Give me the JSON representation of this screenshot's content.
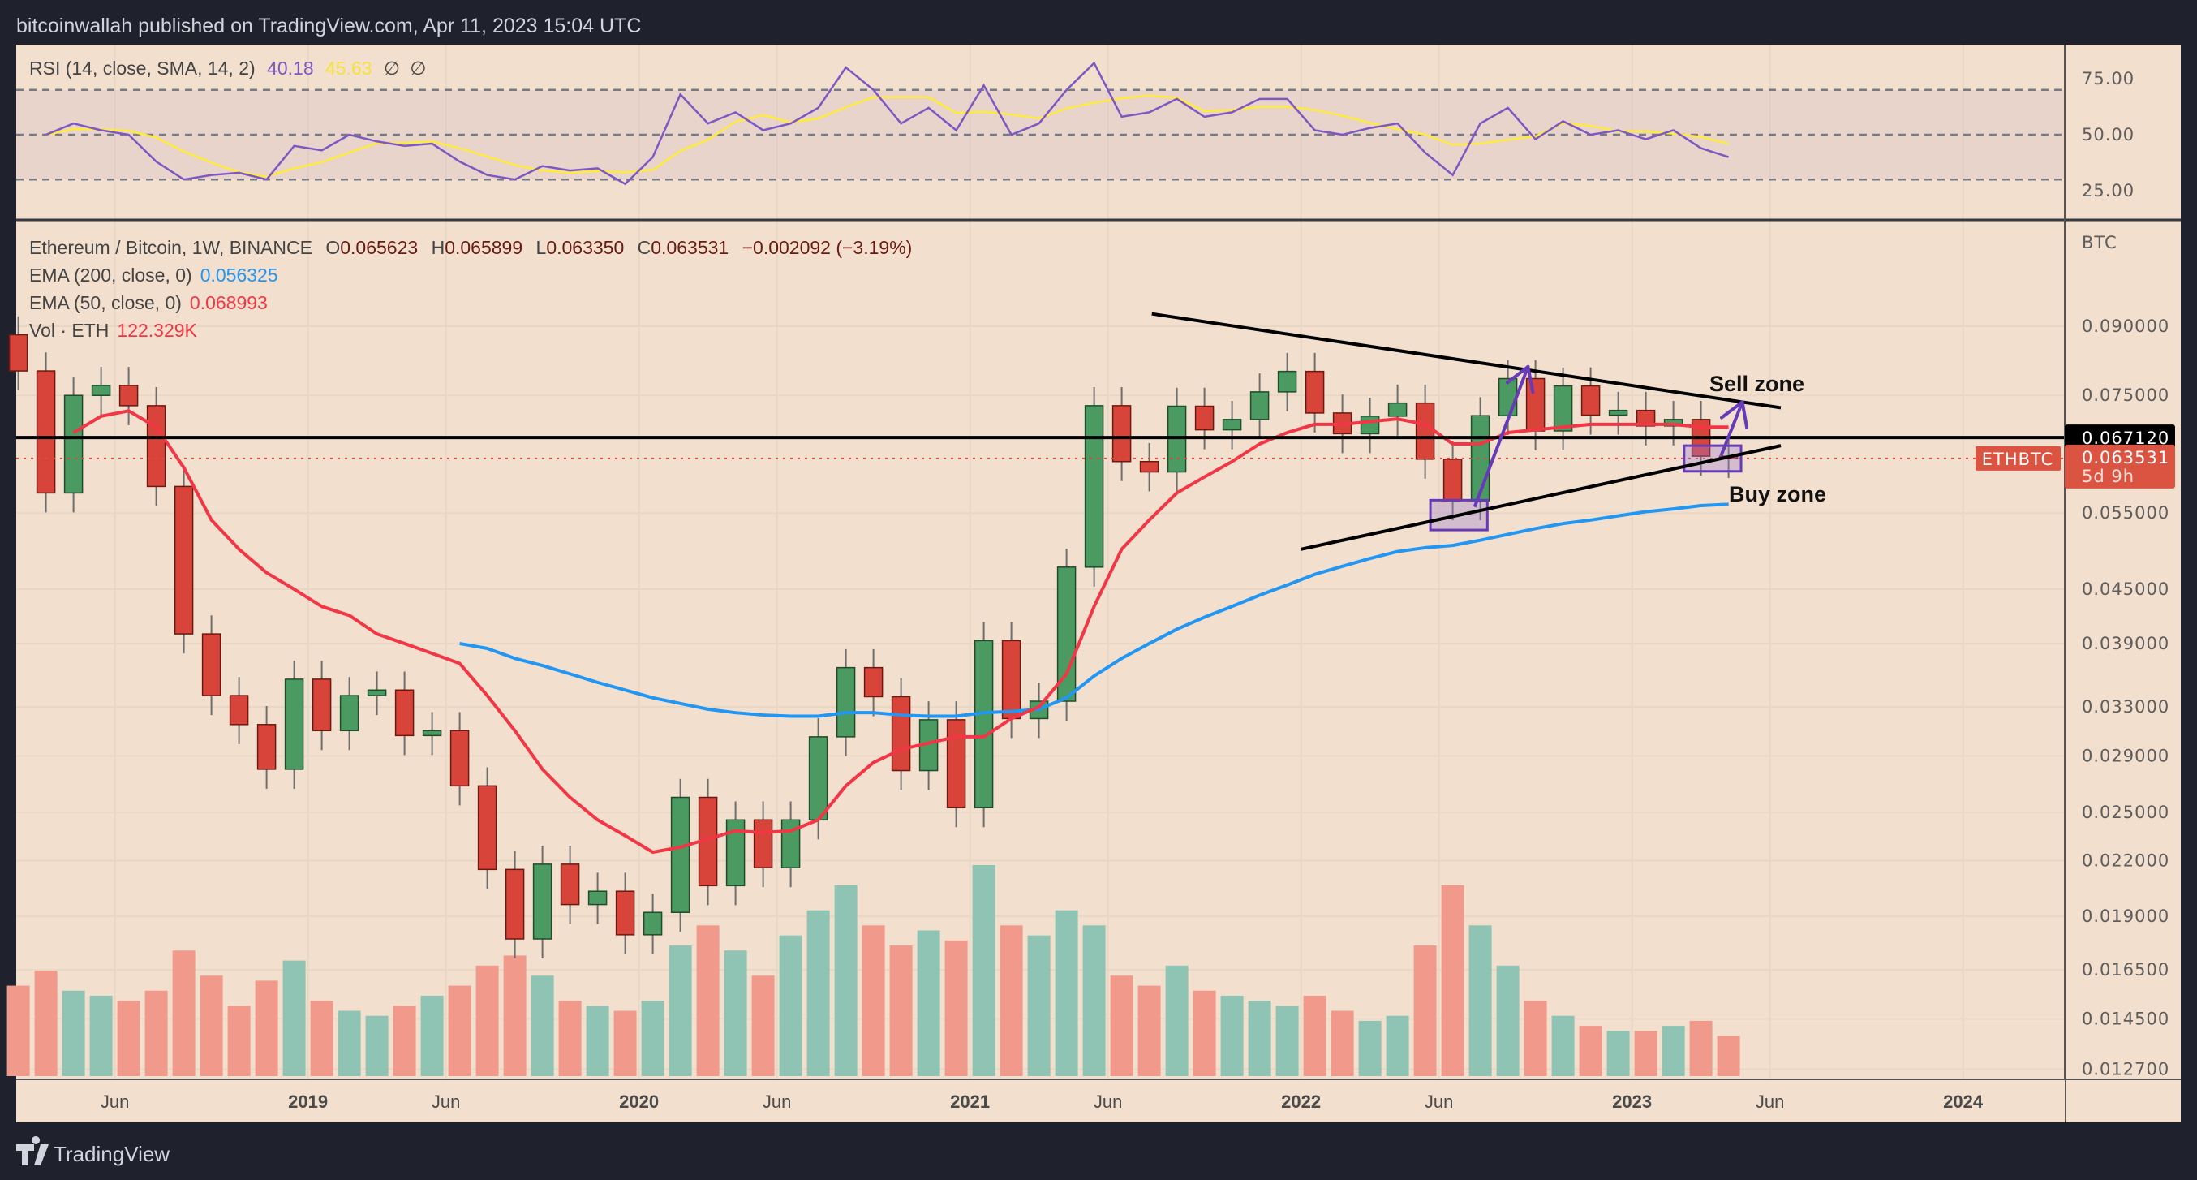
{
  "header": {
    "published": "bitcoinwallah published on TradingView.com, Apr 11, 2023 15:04 UTC"
  },
  "footer": {
    "brand": "TradingView"
  },
  "colors": {
    "background": "#f2dfcd",
    "up": "#4a9a62",
    "down": "#d9443a",
    "ema200": "#2196f3",
    "ema50": "#f23645",
    "rsi": "#7e57c2",
    "rsi_sma": "#ffeb3b",
    "annotation": "#673ab7",
    "volume_up": "#8fc4b4",
    "volume_down": "#f19a8c"
  },
  "rsi_legend": {
    "label": "RSI (14, close, SMA, 14, 2)",
    "rsi_value": "40.18",
    "sma_value": "45.63",
    "extra1": "∅",
    "extra2": "∅"
  },
  "legend": {
    "symbol": "Ethereum / Bitcoin, 1W, BINANCE",
    "o_label": "O",
    "o": "0.065623",
    "h_label": "H",
    "h": "0.065899",
    "l_label": "L",
    "l": "0.063350",
    "c_label": "C",
    "c": "0.063531",
    "change": "−0.002092 (−3.19%)",
    "ema200_label": "EMA (200, close, 0)",
    "ema200_value": "0.056325",
    "ema50_label": "EMA (50, close, 0)",
    "ema50_value": "0.068993",
    "vol_label": "Vol · ETH",
    "vol_value": "122.329K"
  },
  "price_axis": {
    "unit": "BTC",
    "scale": "log",
    "ticks": [
      "0.090000",
      "0.075000",
      "0.055000",
      "0.045000",
      "0.039000",
      "0.033000",
      "0.029000",
      "0.025000",
      "0.022000",
      "0.019000",
      "0.016500",
      "0.014500",
      "0.012700"
    ],
    "level_badge": "0.067120",
    "last_price_badge": "0.063531",
    "countdown": "5d 9h",
    "symbol_badge": "ETHBTC"
  },
  "rsi_axis": {
    "ticks": [
      "75.00",
      "50.00",
      "25.00"
    ],
    "upper_band": 70,
    "mid": 50,
    "lower_band": 30
  },
  "time_axis": [
    {
      "label": "Jun",
      "date": "2018-06-01",
      "bold": false
    },
    {
      "label": "2019",
      "date": "2019-01-01",
      "bold": true
    },
    {
      "label": "Jun",
      "date": "2019-06-01",
      "bold": false
    },
    {
      "label": "2020",
      "date": "2020-01-01",
      "bold": true
    },
    {
      "label": "Jun",
      "date": "2020-06-01",
      "bold": false
    },
    {
      "label": "2021",
      "date": "2021-01-01",
      "bold": true
    },
    {
      "label": "Jun",
      "date": "2021-06-01",
      "bold": false
    },
    {
      "label": "2022",
      "date": "2022-01-01",
      "bold": true
    },
    {
      "label": "Jun",
      "date": "2022-06-01",
      "bold": false
    },
    {
      "label": "2023",
      "date": "2023-01-01",
      "bold": true
    },
    {
      "label": "Jun",
      "date": "2023-06-01",
      "bold": false
    },
    {
      "label": "2024",
      "date": "2024-01-01",
      "bold": true
    }
  ],
  "chart_data": {
    "type": "candlestick",
    "pair": "ETH/BTC",
    "interval_note": "monthly approximation of weekly candles",
    "open_first": 0.088,
    "months": [
      "2018-02",
      "2018-03",
      "2018-04",
      "2018-05",
      "2018-06",
      "2018-07",
      "2018-08",
      "2018-09",
      "2018-10",
      "2018-11",
      "2018-12",
      "2019-01",
      "2019-02",
      "2019-03",
      "2019-04",
      "2019-05",
      "2019-06",
      "2019-07",
      "2019-08",
      "2019-09",
      "2019-10",
      "2019-11",
      "2019-12",
      "2020-01",
      "2020-02",
      "2020-03",
      "2020-04",
      "2020-05",
      "2020-06",
      "2020-07",
      "2020-08",
      "2020-09",
      "2020-10",
      "2020-11",
      "2020-12",
      "2021-01",
      "2021-02",
      "2021-03",
      "2021-04",
      "2021-05",
      "2021-06",
      "2021-07",
      "2021-08",
      "2021-09",
      "2021-10",
      "2021-11",
      "2021-12",
      "2022-01",
      "2022-02",
      "2022-03",
      "2022-04",
      "2022-05",
      "2022-06",
      "2022-07",
      "2022-08",
      "2022-09",
      "2022-10",
      "2022-11",
      "2022-12",
      "2023-01",
      "2023-02",
      "2023-03",
      "2023-04"
    ],
    "close": [
      0.08,
      0.058,
      0.075,
      0.077,
      0.073,
      0.059,
      0.04,
      0.034,
      0.0315,
      0.028,
      0.0355,
      0.031,
      0.034,
      0.0345,
      0.0306,
      0.031,
      0.0268,
      0.0215,
      0.0179,
      0.0218,
      0.0196,
      0.0203,
      0.0181,
      0.0192,
      0.026,
      0.0206,
      0.0245,
      0.0216,
      0.0245,
      0.0305,
      0.0366,
      0.0339,
      0.0279,
      0.0319,
      0.0253,
      0.0393,
      0.032,
      0.0335,
      0.0477,
      0.073,
      0.063,
      0.0613,
      0.0729,
      0.0685,
      0.0704,
      0.0757,
      0.0799,
      0.0716,
      0.0678,
      0.071,
      0.0735,
      0.0634,
      0.0568,
      0.0711,
      0.0784,
      0.0683,
      0.0769,
      0.0712,
      0.0721,
      0.0692,
      0.0704,
      0.0639,
      0.0635
    ],
    "volume": [
      180,
      210,
      170,
      160,
      150,
      170,
      250,
      200,
      140,
      190,
      230,
      150,
      130,
      120,
      140,
      160,
      180,
      220,
      240,
      200,
      150,
      140,
      130,
      150,
      260,
      300,
      250,
      200,
      280,
      330,
      380,
      300,
      260,
      290,
      270,
      420,
      300,
      280,
      330,
      300,
      200,
      180,
      220,
      170,
      160,
      150,
      140,
      160,
      130,
      110,
      120,
      260,
      380,
      300,
      220,
      150,
      120,
      100,
      90,
      90,
      100,
      110,
      80
    ],
    "ema50": {
      "start": "2018-04",
      "values": [
        0.068,
        0.071,
        0.072,
        0.069,
        0.062,
        0.054,
        0.05,
        0.047,
        0.045,
        0.043,
        0.042,
        0.04,
        0.039,
        0.038,
        0.037,
        0.034,
        0.031,
        0.028,
        0.026,
        0.0245,
        0.0235,
        0.0225,
        0.0228,
        0.0233,
        0.0238,
        0.0237,
        0.0238,
        0.0245,
        0.0268,
        0.0285,
        0.0295,
        0.03,
        0.0305,
        0.0305,
        0.032,
        0.033,
        0.036,
        0.043,
        0.05,
        0.054,
        0.058,
        0.0605,
        0.063,
        0.066,
        0.068,
        0.0695,
        0.0695,
        0.07,
        0.0705,
        0.0695,
        0.066,
        0.066,
        0.068,
        0.0685,
        0.069,
        0.0695,
        0.0695,
        0.0695,
        0.0695,
        0.069,
        0.069
      ]
    },
    "ema200": {
      "start": "2019-06",
      "values": [
        0.039,
        0.0385,
        0.0375,
        0.0368,
        0.036,
        0.0352,
        0.0345,
        0.0338,
        0.0333,
        0.0328,
        0.0325,
        0.0323,
        0.0322,
        0.0322,
        0.0325,
        0.0325,
        0.0323,
        0.0322,
        0.0322,
        0.0325,
        0.0326,
        0.0328,
        0.0338,
        0.0358,
        0.0375,
        0.039,
        0.0405,
        0.0418,
        0.043,
        0.0443,
        0.0455,
        0.0468,
        0.0478,
        0.0488,
        0.0497,
        0.0502,
        0.0505,
        0.0512,
        0.052,
        0.0528,
        0.0535,
        0.054,
        0.0546,
        0.0552,
        0.0556,
        0.0561,
        0.0563
      ]
    },
    "rsi": [
      50,
      55,
      52,
      50,
      38,
      30,
      32,
      33,
      30,
      45,
      43,
      50,
      47,
      45,
      46,
      38,
      32,
      30,
      36,
      34,
      35,
      28,
      40,
      68,
      55,
      60,
      52,
      55,
      62,
      80,
      70,
      55,
      62,
      52,
      72,
      50,
      55,
      70,
      82,
      58,
      60,
      66,
      58,
      60,
      66,
      66,
      52,
      50,
      53,
      55,
      42,
      32,
      55,
      62,
      48,
      56,
      50,
      52,
      48,
      52,
      44,
      40
    ],
    "rsi_start": "2018-03",
    "horizontal_level": 0.06712,
    "last_price": 0.063531,
    "trendlines": [
      {
        "from": {
          "date": "2021-07-19",
          "price": 0.093
        },
        "to": {
          "date": "2023-06-13",
          "price": 0.0726
        }
      },
      {
        "from": {
          "date": "2022-01-01",
          "price": 0.05
        },
        "to": {
          "date": "2023-06-13",
          "price": 0.0657
        }
      }
    ],
    "zones": [
      {
        "from": {
          "date": "2022-05-22",
          "price": 0.0569
        },
        "to": {
          "date": "2022-07-24",
          "price": 0.0526
        }
      },
      {
        "from": {
          "date": "2023-02-28",
          "price": 0.0657
        },
        "to": {
          "date": "2023-04-30",
          "price": 0.0614
        }
      }
    ],
    "arrows": [
      {
        "from": {
          "date": "2022-07-10",
          "price": 0.0559
        },
        "to": {
          "date": "2022-09-08",
          "price": 0.0809
        }
      },
      {
        "from": {
          "date": "2023-04-08",
          "price": 0.064
        },
        "to": {
          "date": "2023-05-01",
          "price": 0.0737
        }
      }
    ],
    "annotations": {
      "sell": "Sell zone",
      "buy": "Buy zone"
    }
  }
}
